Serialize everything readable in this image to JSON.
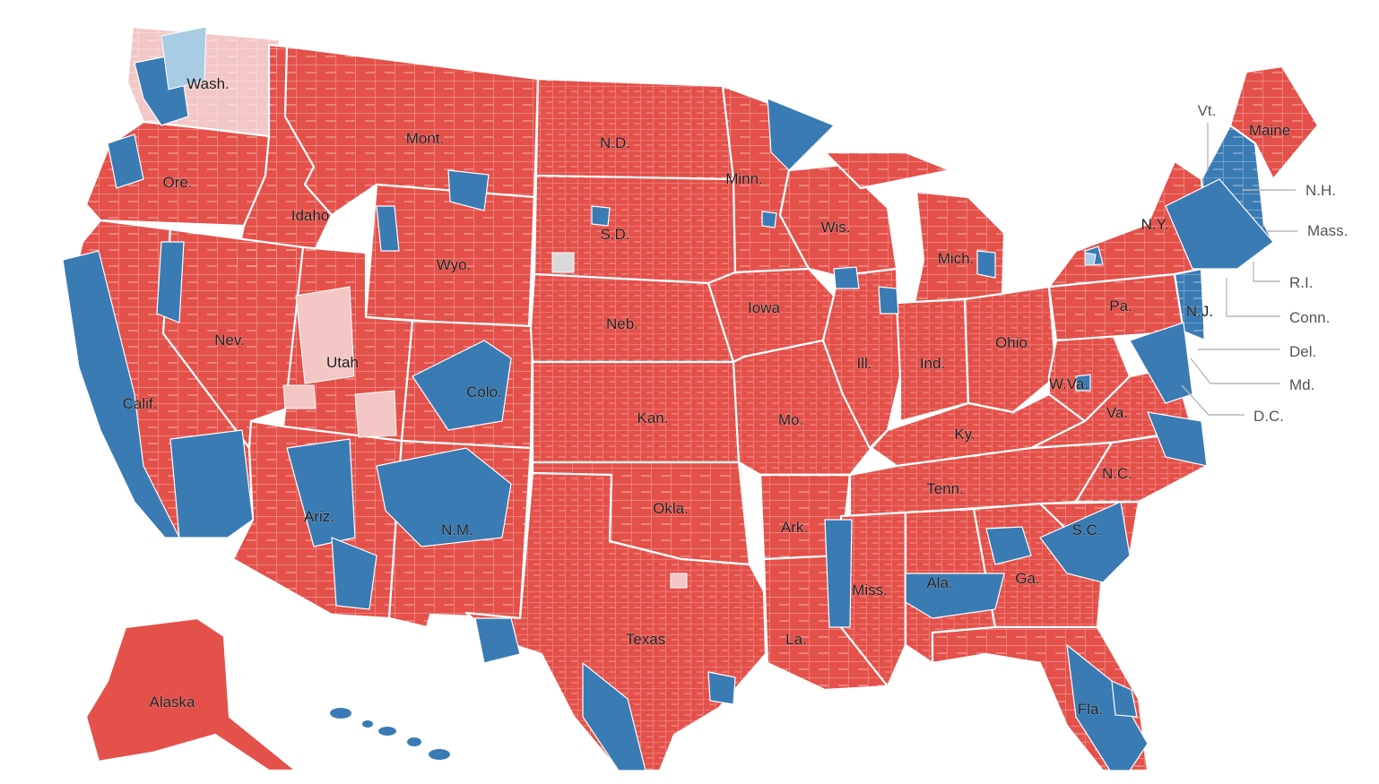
{
  "colors": {
    "republican": "#e4514a",
    "democrat": "#3a7bb4",
    "republican_light": "#f3c7c6",
    "democrat_light": "#a8cce4",
    "tie": "#d9d9d9",
    "border": "#ffffff",
    "callout_text": "#555555",
    "leader_line": "#b8b8b8"
  },
  "state_labels": [
    {
      "id": "wa",
      "text": "Wash."
    },
    {
      "id": "or",
      "text": "Ore."
    },
    {
      "id": "id",
      "text": "Idaho"
    },
    {
      "id": "mt",
      "text": "Mont."
    },
    {
      "id": "wy",
      "text": "Wyo."
    },
    {
      "id": "nv",
      "text": "Nev."
    },
    {
      "id": "ut",
      "text": "Utah"
    },
    {
      "id": "ca",
      "text": "Calif."
    },
    {
      "id": "co",
      "text": "Colo."
    },
    {
      "id": "az",
      "text": "Ariz."
    },
    {
      "id": "nm",
      "text": "N.M."
    },
    {
      "id": "nd",
      "text": "N.D."
    },
    {
      "id": "sd",
      "text": "S.D."
    },
    {
      "id": "ne",
      "text": "Neb."
    },
    {
      "id": "ks",
      "text": "Kan."
    },
    {
      "id": "ok",
      "text": "Okla."
    },
    {
      "id": "tx",
      "text": "Texas"
    },
    {
      "id": "mn",
      "text": "Minn."
    },
    {
      "id": "ia",
      "text": "Iowa"
    },
    {
      "id": "mo",
      "text": "Mo."
    },
    {
      "id": "ar",
      "text": "Ark."
    },
    {
      "id": "la",
      "text": "La."
    },
    {
      "id": "wi",
      "text": "Wis."
    },
    {
      "id": "il",
      "text": "Ill."
    },
    {
      "id": "mi",
      "text": "Mich."
    },
    {
      "id": "in",
      "text": "Ind."
    },
    {
      "id": "oh",
      "text": "Ohio"
    },
    {
      "id": "ky",
      "text": "Ky."
    },
    {
      "id": "tn",
      "text": "Tenn."
    },
    {
      "id": "ms",
      "text": "Miss."
    },
    {
      "id": "al",
      "text": "Ala."
    },
    {
      "id": "ga",
      "text": "Ga."
    },
    {
      "id": "fl",
      "text": "Fla."
    },
    {
      "id": "sc",
      "text": "S.C."
    },
    {
      "id": "nc",
      "text": "N.C."
    },
    {
      "id": "va",
      "text": "Va."
    },
    {
      "id": "wv",
      "text": "W.Va."
    },
    {
      "id": "pa",
      "text": "Pa."
    },
    {
      "id": "ny",
      "text": "N.Y."
    },
    {
      "id": "nj",
      "text": "N.J."
    },
    {
      "id": "me",
      "text": "Maine"
    },
    {
      "id": "ak",
      "text": "Alaska"
    }
  ],
  "callout_labels": [
    {
      "id": "vt",
      "text": "Vt."
    },
    {
      "id": "nh",
      "text": "N.H."
    },
    {
      "id": "ma",
      "text": "Mass."
    },
    {
      "id": "ri",
      "text": "R.I."
    },
    {
      "id": "ct",
      "text": "Conn."
    },
    {
      "id": "de",
      "text": "Del."
    },
    {
      "id": "md",
      "text": "Md."
    },
    {
      "id": "dc",
      "text": "D.C."
    }
  ]
}
